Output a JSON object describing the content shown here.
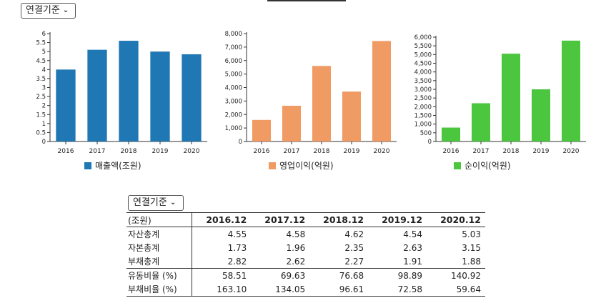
{
  "selector_top": {
    "label": "연결기준"
  },
  "selector_table": {
    "label": "연결기준"
  },
  "charts": [
    {
      "type": "bar",
      "categories": [
        "2016",
        "2017",
        "2018",
        "2019",
        "2020"
      ],
      "values": [
        4.0,
        5.1,
        5.6,
        5.0,
        4.85
      ],
      "yticks": [
        "0",
        "0.5",
        "1",
        "1.5",
        "2",
        "2.5",
        "3",
        "3.5",
        "4",
        "4.5",
        "5",
        "5.5",
        "6"
      ],
      "ylim": [
        0,
        6
      ],
      "color": "#1f77b4",
      "legend": "매출액(조원)"
    },
    {
      "type": "bar",
      "categories": [
        "2016",
        "2017",
        "2018",
        "2019",
        "2020"
      ],
      "values": [
        1600,
        2650,
        5600,
        3700,
        7450
      ],
      "yticks": [
        "0",
        "1,000",
        "2,000",
        "3,000",
        "4,000",
        "5,000",
        "6,000",
        "7,000",
        "8,000"
      ],
      "ylim": [
        0,
        8000
      ],
      "color": "#f09a64",
      "legend": "영업이익(억원)"
    },
    {
      "type": "bar",
      "categories": [
        "2016",
        "2017",
        "2018",
        "2019",
        "2020"
      ],
      "values": [
        800,
        2200,
        5050,
        3000,
        5800
      ],
      "yticks": [
        "0",
        "500",
        "1,000",
        "1,500",
        "2,000",
        "2,500",
        "3,000",
        "3,500",
        "4,000",
        "4,500",
        "5,000",
        "5,500",
        "6,000"
      ],
      "ylim": [
        0,
        6000
      ],
      "color": "#4cc63f",
      "legend": "순이익(억원)"
    }
  ],
  "table": {
    "headers": [
      "(조원)",
      "2016.12",
      "2017.12",
      "2018.12",
      "2019.12",
      "2020.12"
    ],
    "rows": [
      [
        "자산총계",
        "4.55",
        "4.58",
        "4.62",
        "4.54",
        "5.03"
      ],
      [
        "자본총계",
        "1.73",
        "1.96",
        "2.35",
        "2.63",
        "3.15"
      ],
      [
        "부채총계",
        "2.82",
        "2.62",
        "2.27",
        "1.91",
        "1.88"
      ],
      [
        "유동비율 (%)",
        "58.51",
        "69.63",
        "76.68",
        "98.89",
        "140.92"
      ],
      [
        "부채비율 (%)",
        "163.10",
        "134.05",
        "96.61",
        "72.58",
        "59.64"
      ]
    ]
  }
}
